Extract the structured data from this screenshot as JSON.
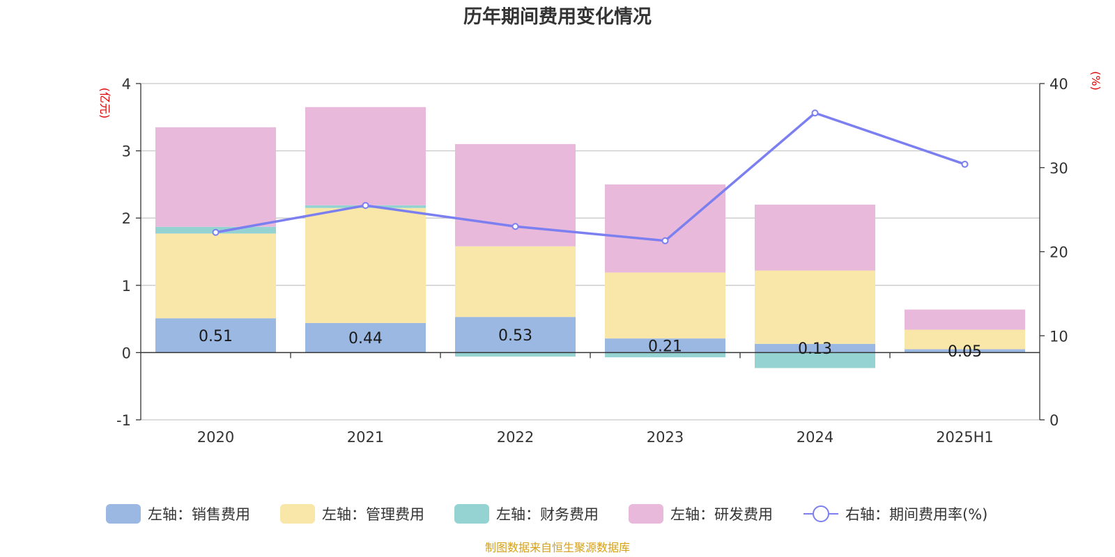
{
  "title": "历年期间费用变化情况",
  "source": "制图数据来自恒生聚源数据库",
  "colors": {
    "sales": "#9bb8e2",
    "admin": "#f8e7a8",
    "finance": "#95d3d3",
    "rnd": "#e8b9da",
    "rate": "#7b7ff0",
    "grid": "#c8c8c8",
    "axis": "#333333",
    "unit": "#e00000",
    "source": "#d4a017"
  },
  "chart_data": {
    "type": "bar",
    "title": "历年期间费用变化情况",
    "categories": [
      "2020",
      "2021",
      "2022",
      "2023",
      "2024",
      "2025H1"
    ],
    "left_axis": {
      "unit_label": "(亿元)",
      "ylim": [
        -1,
        4
      ],
      "ticks": [
        "-1",
        "0",
        "1",
        "2",
        "3",
        "4"
      ]
    },
    "right_axis": {
      "unit_label": "(%)",
      "ylim": [
        0,
        40
      ],
      "ticks": [
        "0",
        "10",
        "20",
        "30",
        "40"
      ]
    },
    "stacked": true,
    "grid": true,
    "legend_position": "bottom",
    "series": [
      {
        "key": "sales",
        "name": "左轴：销售费用",
        "type": "bar",
        "axis": "left",
        "values": [
          0.51,
          0.44,
          0.53,
          0.21,
          0.13,
          0.05
        ],
        "data_labels": [
          "0.51",
          "0.44",
          "0.53",
          "0.21",
          "0.13",
          "0.05"
        ]
      },
      {
        "key": "admin",
        "name": "左轴：管理费用",
        "type": "bar",
        "axis": "left",
        "values": [
          1.26,
          1.71,
          1.05,
          0.98,
          1.09,
          0.29
        ]
      },
      {
        "key": "finance",
        "name": "左轴：财务费用",
        "type": "bar",
        "axis": "left",
        "values": [
          0.1,
          0.04,
          -0.06,
          -0.07,
          -0.23,
          0.0
        ]
      },
      {
        "key": "rnd",
        "name": "左轴：研发费用",
        "type": "bar",
        "axis": "left",
        "values": [
          1.48,
          1.46,
          1.52,
          1.31,
          0.98,
          0.3
        ]
      },
      {
        "key": "rate",
        "name": "右轴：期间费用率(%)",
        "type": "line",
        "axis": "right",
        "values": [
          22.3,
          25.5,
          23.0,
          21.3,
          36.5,
          30.4
        ]
      }
    ]
  }
}
